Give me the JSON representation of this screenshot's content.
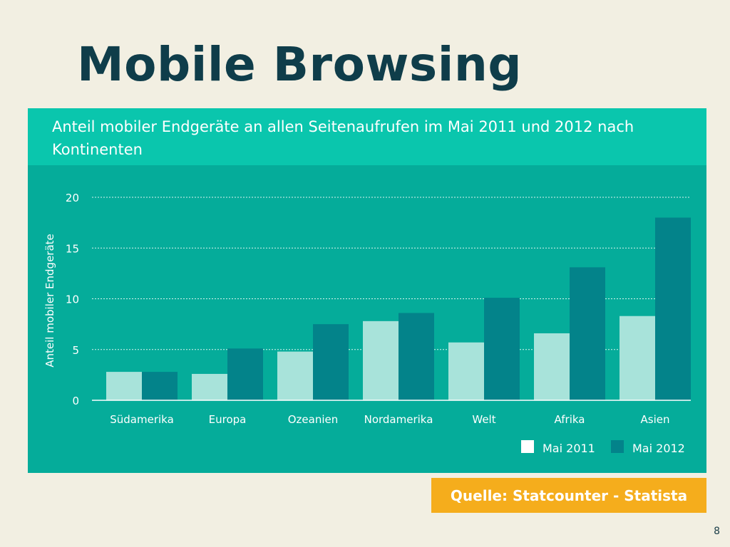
{
  "slide": {
    "title": "Mobile Browsing",
    "source": "Quelle: Statcounter - Statista",
    "page_number": "8"
  },
  "colors": {
    "background": "#f2efe2",
    "title": "#0f3d4a",
    "panel": "#05ac9a",
    "panel_header": "#0ac6ad",
    "series_2011": "#a8e3da",
    "series_2012": "#03838a",
    "source_box": "#f5ad1c"
  },
  "chart_data": {
    "type": "bar",
    "title": "Anteil mobiler Endgeräte an allen Seitenaufrufen im Mai 2011 und 2012 nach Kontinenten",
    "xlabel": "",
    "ylabel": "Anteil mobiler Endgeräte",
    "categories": [
      "Südamerika",
      "Europa",
      "Ozeanien",
      "Nordamerika",
      "Welt",
      "Afrika",
      "Asien"
    ],
    "series": [
      {
        "name": "Mai 2011",
        "values": [
          2.8,
          2.6,
          4.8,
          7.8,
          5.7,
          6.6,
          8.3
        ]
      },
      {
        "name": "Mai 2012",
        "values": [
          2.8,
          5.1,
          7.5,
          8.6,
          10.1,
          13.1,
          18.0
        ]
      }
    ],
    "ylim": [
      0,
      20
    ],
    "yticks": [
      0,
      5,
      10,
      15,
      20
    ],
    "grid": true,
    "legend_position": "bottom-right"
  }
}
